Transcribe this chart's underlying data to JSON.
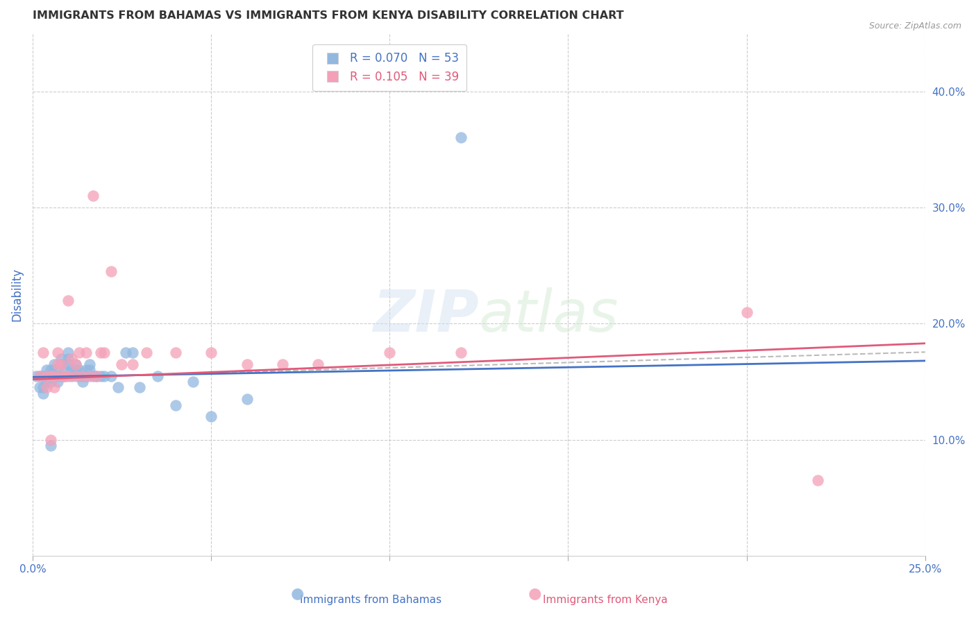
{
  "title": "IMMIGRANTS FROM BAHAMAS VS IMMIGRANTS FROM KENYA DISABILITY CORRELATION CHART",
  "source": "Source: ZipAtlas.com",
  "ylabel": "Disability",
  "xlabel": "",
  "xlim": [
    0.0,
    0.25
  ],
  "ylim": [
    0.0,
    0.45
  ],
  "right_yticks": [
    0.1,
    0.2,
    0.3,
    0.4
  ],
  "right_yticklabels": [
    "10.0%",
    "20.0%",
    "30.0%",
    "40.0%"
  ],
  "xticks": [
    0.0,
    0.05,
    0.1,
    0.15,
    0.2,
    0.25
  ],
  "xticklabels": [
    "0.0%",
    "",
    "",
    "",
    "",
    "25.0%"
  ],
  "bahamas_color": "#92b8e0",
  "kenya_color": "#f4a0b8",
  "bahamas_line_color": "#4472c4",
  "kenya_line_color": "#e05a7a",
  "watermark_zip": "ZIP",
  "watermark_atlas": "atlas",
  "legend_r_bahamas": "R = 0.070",
  "legend_n_bahamas": "N = 53",
  "legend_r_kenya": "R = 0.105",
  "legend_n_kenya": "N = 39",
  "bahamas_x": [
    0.001,
    0.002,
    0.002,
    0.003,
    0.003,
    0.003,
    0.004,
    0.004,
    0.004,
    0.005,
    0.005,
    0.005,
    0.005,
    0.006,
    0.006,
    0.006,
    0.007,
    0.007,
    0.008,
    0.008,
    0.008,
    0.009,
    0.009,
    0.01,
    0.01,
    0.01,
    0.011,
    0.011,
    0.012,
    0.012,
    0.013,
    0.013,
    0.014,
    0.014,
    0.015,
    0.015,
    0.016,
    0.016,
    0.017,
    0.018,
    0.019,
    0.02,
    0.022,
    0.024,
    0.026,
    0.028,
    0.03,
    0.035,
    0.04,
    0.045,
    0.05,
    0.06,
    0.12
  ],
  "bahamas_y": [
    0.155,
    0.155,
    0.145,
    0.155,
    0.145,
    0.14,
    0.16,
    0.155,
    0.15,
    0.16,
    0.155,
    0.15,
    0.095,
    0.165,
    0.16,
    0.155,
    0.155,
    0.15,
    0.17,
    0.165,
    0.155,
    0.16,
    0.155,
    0.175,
    0.17,
    0.165,
    0.16,
    0.155,
    0.165,
    0.16,
    0.16,
    0.155,
    0.155,
    0.15,
    0.16,
    0.155,
    0.165,
    0.16,
    0.155,
    0.155,
    0.155,
    0.155,
    0.155,
    0.145,
    0.175,
    0.175,
    0.145,
    0.155,
    0.13,
    0.15,
    0.12,
    0.135,
    0.36
  ],
  "kenya_x": [
    0.002,
    0.003,
    0.004,
    0.004,
    0.005,
    0.005,
    0.006,
    0.006,
    0.007,
    0.007,
    0.008,
    0.008,
    0.009,
    0.01,
    0.01,
    0.011,
    0.012,
    0.012,
    0.013,
    0.014,
    0.015,
    0.016,
    0.017,
    0.018,
    0.019,
    0.02,
    0.022,
    0.025,
    0.028,
    0.032,
    0.04,
    0.05,
    0.06,
    0.07,
    0.08,
    0.1,
    0.12,
    0.2,
    0.22
  ],
  "kenya_y": [
    0.155,
    0.175,
    0.155,
    0.145,
    0.155,
    0.1,
    0.155,
    0.145,
    0.175,
    0.165,
    0.165,
    0.155,
    0.155,
    0.22,
    0.155,
    0.17,
    0.165,
    0.155,
    0.175,
    0.155,
    0.175,
    0.155,
    0.31,
    0.155,
    0.175,
    0.175,
    0.245,
    0.165,
    0.165,
    0.175,
    0.175,
    0.175,
    0.165,
    0.165,
    0.165,
    0.175,
    0.175,
    0.21,
    0.065
  ],
  "grid_color": "#cccccc",
  "background_color": "#ffffff",
  "title_color": "#333333",
  "axis_label_color": "#4472c4",
  "tick_label_color": "#4472c4"
}
